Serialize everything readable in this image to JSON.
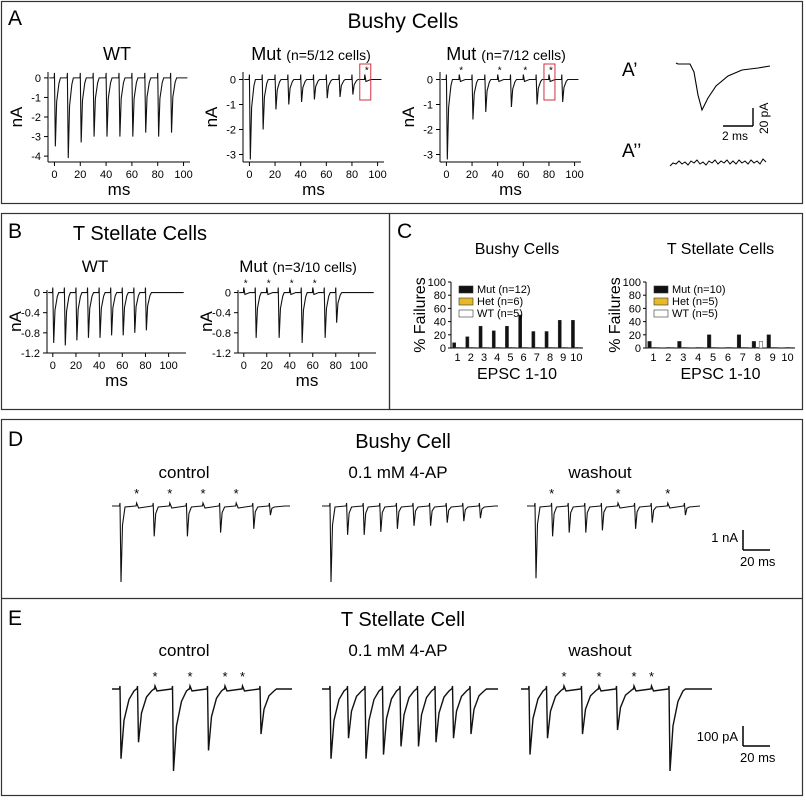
{
  "panels": {
    "A": {
      "letter": "A",
      "title": "Bushy Cells",
      "sub": [
        {
          "name": "WT",
          "note": ""
        },
        {
          "name": "Mut",
          "note": "(n=5/12 cells)"
        },
        {
          "name": "Mut",
          "note": "(n=7/12 cells)"
        }
      ],
      "inset1": "A’",
      "inset2": "A’’",
      "inset_scale_x": "2 ms",
      "inset_scale_y": "20 pA"
    },
    "B": {
      "letter": "B",
      "title": "T Stellate Cells",
      "sub": [
        {
          "name": "WT",
          "note": ""
        },
        {
          "name": "Mut",
          "note": "(n=3/10 cells)"
        }
      ]
    },
    "C": {
      "letter": "C"
    },
    "D": {
      "letter": "D",
      "title": "Bushy Cell",
      "conditions": [
        "control",
        "0.1 mM 4-AP",
        "washout"
      ],
      "scale_y": "1 nA",
      "scale_x": "20 ms"
    },
    "E": {
      "letter": "E",
      "title": "T Stellate Cell",
      "conditions": [
        "control",
        "0.1 mM 4-AP",
        "washout"
      ],
      "scale_y": "100 pA",
      "scale_x": "20 ms"
    }
  },
  "chart_data": [
    {
      "type": "line",
      "panel": "A",
      "trace": "WT",
      "xlabel": "ms",
      "ylabel": "nA",
      "xticks": [
        "0",
        "20",
        "40",
        "60",
        "80",
        "100"
      ],
      "yticks": [
        "0",
        "-1",
        "-2",
        "-3",
        "-4"
      ],
      "xlim": [
        -5,
        105
      ],
      "ylim": [
        -4.3,
        0.3
      ],
      "events_ms": [
        0,
        10,
        20,
        30,
        40,
        50,
        60,
        70,
        80,
        90
      ],
      "peaks_nA": [
        -3.5,
        -4.1,
        -3.3,
        -3.0,
        -3.0,
        -3.0,
        -3.0,
        -2.8,
        -3.0,
        -2.8
      ],
      "failures_ms": []
    },
    {
      "type": "line",
      "panel": "A",
      "trace": "Mut (n=5/12 cells)",
      "xlabel": "ms",
      "ylabel": "nA",
      "xticks": [
        "0",
        "20",
        "40",
        "60",
        "80",
        "100"
      ],
      "yticks": [
        "0",
        "-1",
        "-2",
        "-3"
      ],
      "xlim": [
        -5,
        105
      ],
      "ylim": [
        -3.3,
        0.3
      ],
      "events_ms": [
        0,
        10,
        20,
        30,
        40,
        50,
        60,
        70,
        80,
        90
      ],
      "peaks_nA": [
        -3.2,
        -2.0,
        -1.2,
        -1.0,
        -0.9,
        -0.8,
        -0.75,
        -0.7,
        -0.6,
        0
      ],
      "failures_ms": [
        90
      ]
    },
    {
      "type": "line",
      "panel": "A",
      "trace": "Mut (n=7/12 cells)",
      "xlabel": "ms",
      "ylabel": "nA",
      "xticks": [
        "0",
        "20",
        "40",
        "60",
        "80",
        "100"
      ],
      "yticks": [
        "0",
        "-1",
        "-2",
        "-3"
      ],
      "xlim": [
        -5,
        105
      ],
      "ylim": [
        -3.3,
        0.3
      ],
      "events_ms": [
        0,
        10,
        20,
        30,
        40,
        50,
        60,
        70,
        80,
        90
      ],
      "peaks_nA": [
        -3.2,
        0,
        -1.6,
        -1.3,
        0,
        -1.1,
        0,
        -1.0,
        0,
        -0.9
      ],
      "failures_ms": [
        10,
        40,
        60,
        80
      ]
    },
    {
      "type": "line",
      "panel": "B",
      "trace": "WT",
      "xlabel": "ms",
      "ylabel": "nA",
      "xticks": [
        "0",
        "20",
        "40",
        "60",
        "80",
        "100"
      ],
      "yticks": [
        "0",
        "-0.4",
        "-0.8",
        "-1.2"
      ],
      "xlim": [
        -5,
        115
      ],
      "ylim": [
        -1.2,
        0.05
      ],
      "events_ms": [
        0,
        10,
        20,
        30,
        40,
        50,
        60,
        70,
        80
      ],
      "peaks_nA": [
        -1.0,
        -1.05,
        -0.95,
        -0.9,
        -0.9,
        -0.85,
        -0.85,
        -0.8,
        -0.75
      ],
      "failures_ms": []
    },
    {
      "type": "line",
      "panel": "B",
      "trace": "Mut (n=3/10 cells)",
      "xlabel": "ms",
      "ylabel": "nA",
      "xticks": [
        "0",
        "20",
        "40",
        "60",
        "80",
        "100"
      ],
      "yticks": [
        "0",
        "-0.4",
        "-0.8",
        "-1.2"
      ],
      "xlim": [
        -5,
        115
      ],
      "ylim": [
        -1.2,
        0.05
      ],
      "events_ms": [
        0,
        10,
        20,
        30,
        40,
        50,
        60,
        70,
        80
      ],
      "peaks_nA": [
        0,
        -0.9,
        0,
        -0.9,
        0,
        -1.0,
        0,
        -0.9,
        -0.6
      ],
      "failures_ms": [
        0,
        20,
        40,
        60
      ]
    },
    {
      "type": "bar",
      "panel": "C",
      "title": "Bushy Cells",
      "xlabel": "EPSC 1-10",
      "ylabel": "% Failures",
      "categories": [
        "1",
        "2",
        "3",
        "4",
        "5",
        "6",
        "7",
        "8",
        "9",
        "10"
      ],
      "ylim": [
        0,
        100
      ],
      "yticks": [
        "0",
        "20",
        "40",
        "60",
        "80",
        "100"
      ],
      "legend_position": "top-left",
      "series": [
        {
          "name": "Mut (n=12)",
          "color": "#111111",
          "values": [
            8,
            17,
            33,
            26,
            33,
            50,
            25,
            25,
            42,
            42
          ]
        },
        {
          "name": "Het (n=6)",
          "color": "#e8b828",
          "values": [
            1,
            1,
            1,
            1,
            1,
            1,
            1,
            1,
            1,
            1
          ]
        },
        {
          "name": "WT (n=5)",
          "color": "#ffffff",
          "values": [
            1,
            1,
            1,
            1,
            1,
            1,
            1,
            1,
            1,
            1
          ]
        }
      ]
    },
    {
      "type": "bar",
      "panel": "C",
      "title": "T Stellate Cells",
      "xlabel": "EPSC 1-10",
      "ylabel": "% Failures",
      "categories": [
        "1",
        "2",
        "3",
        "4",
        "5",
        "6",
        "7",
        "8",
        "9",
        "10"
      ],
      "ylim": [
        0,
        100
      ],
      "yticks": [
        "0",
        "20",
        "40",
        "60",
        "80",
        "100"
      ],
      "legend_position": "top-left",
      "series": [
        {
          "name": "Mut (n=10)",
          "color": "#111111",
          "values": [
            10,
            0,
            10,
            0,
            20,
            0,
            20,
            10,
            20,
            0
          ]
        },
        {
          "name": "Het (n=5)",
          "color": "#e8b828",
          "values": [
            1,
            1,
            1,
            1,
            1,
            1,
            1,
            1,
            1,
            1
          ]
        },
        {
          "name": "WT (n=5)",
          "color": "#ffffff",
          "values": [
            1,
            1,
            1,
            1,
            1,
            1,
            1,
            10,
            1,
            1
          ]
        }
      ]
    },
    {
      "type": "line",
      "panel": "D",
      "trace": "control",
      "events": 10,
      "failures_idx": [
        1,
        3,
        5,
        7
      ],
      "amplitudes_rel": [
        1.0,
        0,
        0.4,
        0,
        0.4,
        0,
        0.35,
        0,
        0.3,
        0.12
      ]
    },
    {
      "type": "line",
      "panel": "D",
      "trace": "0.1 mM 4-AP",
      "events": 10,
      "failures_idx": [],
      "amplitudes_rel": [
        1.0,
        0.38,
        0.38,
        0.34,
        0.3,
        0.26,
        0.26,
        0.22,
        0.2,
        0.16
      ]
    },
    {
      "type": "line",
      "panel": "D",
      "trace": "washout",
      "events": 10,
      "failures_idx": [
        1,
        5,
        8
      ],
      "amplitudes_rel": [
        0.95,
        0.4,
        0.35,
        0.35,
        0.32,
        0,
        0.3,
        0.22,
        0,
        0.12
      ]
    },
    {
      "type": "line",
      "panel": "E",
      "trace": "control",
      "events": 9,
      "failures_idx": [
        2,
        4,
        6,
        7
      ],
      "amplitudes_rel": [
        0.85,
        0.65,
        0,
        1.0,
        0,
        0.75,
        0,
        0,
        0.55
      ]
    },
    {
      "type": "line",
      "panel": "E",
      "trace": "0.1 mM 4-AP",
      "events": 9,
      "failures_idx": [],
      "amplitudes_rel": [
        0.85,
        0.6,
        0.85,
        0.8,
        0.7,
        0.7,
        0.65,
        0.6,
        0.55
      ]
    },
    {
      "type": "line",
      "panel": "E",
      "trace": "washout",
      "events": 9,
      "failures_idx": [
        2,
        4,
        6,
        7
      ],
      "amplitudes_rel": [
        0.8,
        0.6,
        0,
        0.55,
        0,
        0.5,
        0,
        0,
        1.0
      ]
    }
  ]
}
